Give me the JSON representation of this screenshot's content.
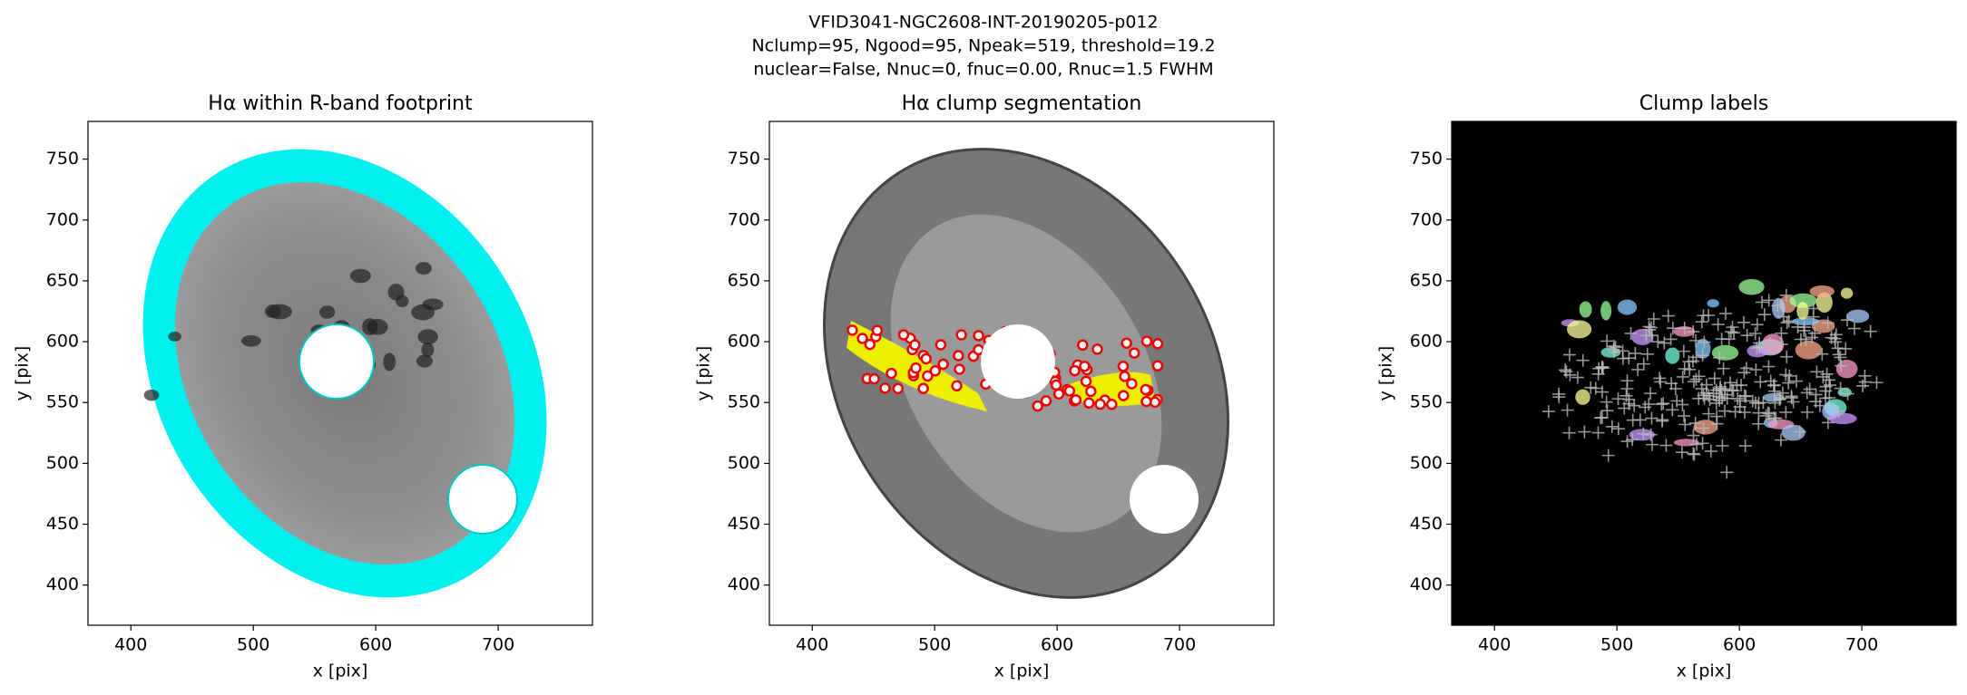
{
  "figure_title": [
    "VFID3041-NGC2608-INT-20190205-p012",
    "Nclump=95, Ngood=95, Npeak=519, threshold=19.2",
    "nuclear=False, Nnuc=0, fnuc=0.00, Rnuc=1.5 FWHM"
  ],
  "chart_data": [
    {
      "type": "image",
      "title": "Hα within R-band footprint",
      "x_label": "x [pix]",
      "y_label": "y [pix]",
      "xlim": [
        365,
        777
      ],
      "ylim": [
        367,
        781
      ],
      "xticks": [
        400,
        500,
        600,
        700
      ],
      "yticks": [
        400,
        450,
        500,
        550,
        600,
        650,
        700,
        750
      ],
      "style": "footprint"
    },
    {
      "type": "image",
      "title": "Hα clump segmentation",
      "x_label": "x [pix]",
      "y_label": "y [pix]",
      "xlim": [
        365,
        777
      ],
      "ylim": [
        367,
        781
      ],
      "xticks": [
        400,
        500,
        600,
        700
      ],
      "yticks": [
        400,
        450,
        500,
        550,
        600,
        650,
        700,
        750
      ],
      "style": "segmentation"
    },
    {
      "type": "image",
      "title": "Clump labels",
      "x_label": "x [pix]",
      "y_label": "y [pix]",
      "xlim": [
        365,
        777
      ],
      "ylim": [
        367,
        781
      ],
      "xticks": [
        400,
        500,
        600,
        700
      ],
      "yticks": [
        400,
        450,
        500,
        550,
        600,
        650,
        700,
        750
      ],
      "style": "labels"
    }
  ]
}
